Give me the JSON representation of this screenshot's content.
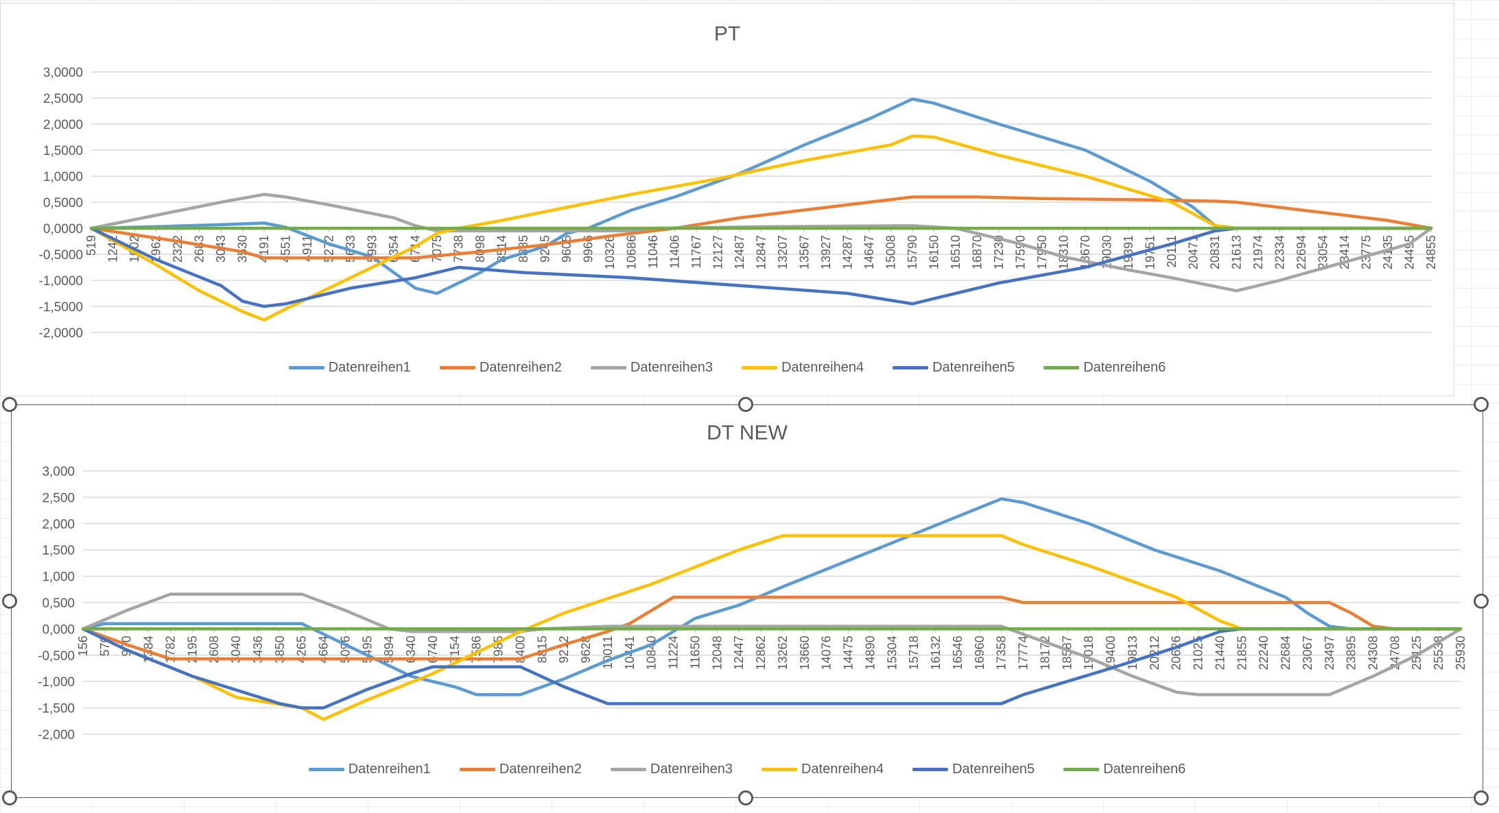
{
  "chart_data": [
    {
      "type": "line",
      "title": "PT",
      "xlabel": "",
      "ylabel": "",
      "ylim": [
        -2,
        3
      ],
      "y_ticks": [
        "3,0000",
        "2,5000",
        "2,0000",
        "1,5000",
        "1,0000",
        "0,5000",
        "0,0000",
        "-0,5000",
        "-1,0000",
        "-1,5000",
        "-2,0000"
      ],
      "y_tick_values": [
        3,
        2.5,
        2,
        1.5,
        1,
        0.5,
        0,
        -0.5,
        -1,
        -1.5,
        -2
      ],
      "categories": [
        "519",
        "1242",
        "1602",
        "1962",
        "2322",
        "2683",
        "3043",
        "3530",
        "4191",
        "4551",
        "4911",
        "5272",
        "5633",
        "5993",
        "6354",
        "6714",
        "7075",
        "7738",
        "8098",
        "8514",
        "8885",
        "9245",
        "9605",
        "9966",
        "10326",
        "10686",
        "11046",
        "11406",
        "11767",
        "12127",
        "12487",
        "12847",
        "13207",
        "13567",
        "13927",
        "14287",
        "14647",
        "15008",
        "15790",
        "16150",
        "16510",
        "16870",
        "17230",
        "17590",
        "17950",
        "18310",
        "18670",
        "19030",
        "19391",
        "19751",
        "20111",
        "20471",
        "20831",
        "21613",
        "21974",
        "22334",
        "22694",
        "23054",
        "23414",
        "23775",
        "24135",
        "24495",
        "24855"
      ],
      "grid": true,
      "legend_position": "bottom",
      "series": [
        {
          "name": "Datenreihen1",
          "color": "#5b9bd5",
          "points": [
            [
              0,
              0
            ],
            [
              3,
              0.03
            ],
            [
              6,
              0.07
            ],
            [
              8,
              0.1
            ],
            [
              9,
              0.02
            ],
            [
              11,
              -0.3
            ],
            [
              13,
              -0.55
            ],
            [
              14,
              -0.85
            ],
            [
              15,
              -1.15
            ],
            [
              16,
              -1.25
            ],
            [
              17,
              -1.05
            ],
            [
              18,
              -0.85
            ],
            [
              19,
              -0.6
            ],
            [
              21,
              -0.35
            ],
            [
              22,
              -0.1
            ],
            [
              23,
              0
            ],
            [
              25,
              0.35
            ],
            [
              27,
              0.6
            ],
            [
              30,
              1.05
            ],
            [
              33,
              1.6
            ],
            [
              36,
              2.1
            ],
            [
              38,
              2.48
            ],
            [
              39,
              2.4
            ],
            [
              42,
              2.0
            ],
            [
              46,
              1.5
            ],
            [
              49,
              0.9
            ],
            [
              51,
              0.4
            ],
            [
              52,
              0.05
            ],
            [
              53,
              0
            ],
            [
              62,
              0
            ]
          ]
        },
        {
          "name": "Datenreihen2",
          "color": "#ed7d31",
          "points": [
            [
              0,
              0
            ],
            [
              4,
              -0.25
            ],
            [
              7,
              -0.45
            ],
            [
              8,
              -0.57
            ],
            [
              15,
              -0.57
            ],
            [
              18,
              -0.45
            ],
            [
              21,
              -0.32
            ],
            [
              24,
              -0.15
            ],
            [
              26,
              -0.05
            ],
            [
              27,
              0
            ],
            [
              30,
              0.2
            ],
            [
              33,
              0.35
            ],
            [
              36,
              0.5
            ],
            [
              38,
              0.6
            ],
            [
              41,
              0.6
            ],
            [
              44,
              0.57
            ],
            [
              48,
              0.55
            ],
            [
              52,
              0.52
            ],
            [
              53,
              0.5
            ],
            [
              54,
              0.45
            ],
            [
              57,
              0.3
            ],
            [
              60,
              0.15
            ],
            [
              62,
              0
            ]
          ]
        },
        {
          "name": "Datenreihen3",
          "color": "#a5a5a5",
          "points": [
            [
              0,
              0
            ],
            [
              3,
              0.25
            ],
            [
              6,
              0.5
            ],
            [
              8,
              0.65
            ],
            [
              9,
              0.6
            ],
            [
              11,
              0.45
            ],
            [
              14,
              0.2
            ],
            [
              15,
              0.05
            ],
            [
              16,
              -0.05
            ],
            [
              25,
              -0.05
            ],
            [
              26,
              0
            ],
            [
              31,
              0.03
            ],
            [
              38,
              0.05
            ],
            [
              40,
              0
            ],
            [
              43,
              -0.3
            ],
            [
              45,
              -0.55
            ],
            [
              48,
              -0.8
            ],
            [
              50,
              -0.95
            ],
            [
              53,
              -1.2
            ],
            [
              55,
              -1.0
            ],
            [
              58,
              -0.65
            ],
            [
              61,
              -0.3
            ],
            [
              62,
              0
            ]
          ]
        },
        {
          "name": "Datenreihen4",
          "color": "#ffc000",
          "points": [
            [
              0,
              0
            ],
            [
              3,
              -0.7
            ],
            [
              5,
              -1.2
            ],
            [
              7,
              -1.6
            ],
            [
              8,
              -1.76
            ],
            [
              9,
              -1.55
            ],
            [
              12,
              -0.95
            ],
            [
              15,
              -0.35
            ],
            [
              16,
              -0.1
            ],
            [
              17,
              0
            ],
            [
              19,
              0.15
            ],
            [
              22,
              0.4
            ],
            [
              25,
              0.65
            ],
            [
              29,
              0.95
            ],
            [
              33,
              1.3
            ],
            [
              37,
              1.6
            ],
            [
              38,
              1.77
            ],
            [
              39,
              1.75
            ],
            [
              42,
              1.4
            ],
            [
              46,
              1.0
            ],
            [
              50,
              0.5
            ],
            [
              52,
              0.05
            ],
            [
              53,
              0
            ],
            [
              62,
              0
            ]
          ]
        },
        {
          "name": "Datenreihen5",
          "color": "#4472c4",
          "points": [
            [
              0,
              0
            ],
            [
              3,
              -0.6
            ],
            [
              6,
              -1.1
            ],
            [
              7,
              -1.4
            ],
            [
              8,
              -1.5
            ],
            [
              9,
              -1.45
            ],
            [
              12,
              -1.15
            ],
            [
              15,
              -0.95
            ],
            [
              17,
              -0.75
            ],
            [
              20,
              -0.85
            ],
            [
              25,
              -0.95
            ],
            [
              30,
              -1.1
            ],
            [
              35,
              -1.25
            ],
            [
              38,
              -1.45
            ],
            [
              39,
              -1.35
            ],
            [
              42,
              -1.05
            ],
            [
              46,
              -0.75
            ],
            [
              50,
              -0.3
            ],
            [
              52,
              -0.05
            ],
            [
              53,
              0
            ],
            [
              62,
              0
            ]
          ]
        },
        {
          "name": "Datenreihen6",
          "color": "#70ad47",
          "points": [
            [
              0,
              0
            ],
            [
              62,
              0
            ]
          ]
        }
      ]
    },
    {
      "type": "line",
      "title": "DT  NEW",
      "xlabel": "",
      "ylabel": "",
      "ylim": [
        -2,
        3
      ],
      "y_ticks": [
        "3,000",
        "2,500",
        "2,000",
        "1,500",
        "1,000",
        "0,500",
        "0,000",
        "-0,500",
        "-1,000",
        "-1,500",
        "-2,000"
      ],
      "y_tick_values": [
        3,
        2.5,
        2,
        1.5,
        1,
        0.5,
        0,
        -0.5,
        -1,
        -1.5,
        -2
      ],
      "categories": [
        "156",
        "570",
        "970",
        "1384",
        "1782",
        "2195",
        "2608",
        "3040",
        "3436",
        "3850",
        "4265",
        "4664",
        "5096",
        "5495",
        "5894",
        "6340",
        "6740",
        "7154",
        "7586",
        "7985",
        "8400",
        "8815",
        "9212",
        "9628",
        "10011",
        "10441",
        "10840",
        "11224",
        "11650",
        "12048",
        "12447",
        "12862",
        "13262",
        "13660",
        "14076",
        "14475",
        "14890",
        "15304",
        "15718",
        "16132",
        "16546",
        "16960",
        "17358",
        "17774",
        "18172",
        "18587",
        "19018",
        "19400",
        "19813",
        "20212",
        "20626",
        "21025",
        "21440",
        "21855",
        "22240",
        "22684",
        "23067",
        "23497",
        "23895",
        "24308",
        "24708",
        "25125",
        "25538",
        "25930"
      ],
      "grid": true,
      "legend_position": "bottom",
      "series": [
        {
          "name": "Datenreihen1",
          "color": "#5b9bd5",
          "points": [
            [
              0,
              0
            ],
            [
              1,
              0.1
            ],
            [
              10,
              0.1
            ],
            [
              11,
              -0.1
            ],
            [
              13,
              -0.5
            ],
            [
              15,
              -0.9
            ],
            [
              17,
              -1.1
            ],
            [
              18,
              -1.25
            ],
            [
              20,
              -1.25
            ],
            [
              22,
              -0.95
            ],
            [
              24,
              -0.6
            ],
            [
              26,
              -0.3
            ],
            [
              27,
              -0.05
            ],
            [
              28,
              0.2
            ],
            [
              30,
              0.45
            ],
            [
              32,
              0.8
            ],
            [
              35,
              1.3
            ],
            [
              38,
              1.8
            ],
            [
              42,
              2.47
            ],
            [
              43,
              2.4
            ],
            [
              46,
              2.0
            ],
            [
              49,
              1.5
            ],
            [
              52,
              1.1
            ],
            [
              55,
              0.6
            ],
            [
              56,
              0.3
            ],
            [
              57,
              0.05
            ],
            [
              58,
              0
            ],
            [
              63,
              0
            ]
          ]
        },
        {
          "name": "Datenreihen2",
          "color": "#ed7d31",
          "points": [
            [
              0,
              0
            ],
            [
              2,
              -0.3
            ],
            [
              4,
              -0.57
            ],
            [
              15,
              -0.57
            ],
            [
              17,
              -0.57
            ],
            [
              20,
              -0.57
            ],
            [
              22,
              -0.3
            ],
            [
              24,
              -0.05
            ],
            [
              25,
              0.1
            ],
            [
              27,
              0.6
            ],
            [
              42,
              0.6
            ],
            [
              43,
              0.5
            ],
            [
              56,
              0.5
            ],
            [
              57,
              0.5
            ],
            [
              58,
              0.3
            ],
            [
              59,
              0.05
            ],
            [
              60,
              0
            ],
            [
              63,
              0
            ]
          ]
        },
        {
          "name": "Datenreihen3",
          "color": "#a5a5a5",
          "points": [
            [
              0,
              0
            ],
            [
              2,
              0.35
            ],
            [
              4,
              0.66
            ],
            [
              10,
              0.66
            ],
            [
              12,
              0.35
            ],
            [
              14,
              0
            ],
            [
              15,
              -0.05
            ],
            [
              20,
              -0.05
            ],
            [
              21,
              0
            ],
            [
              24,
              0.05
            ],
            [
              42,
              0.05
            ],
            [
              43,
              -0.1
            ],
            [
              46,
              -0.55
            ],
            [
              48,
              -0.9
            ],
            [
              50,
              -1.2
            ],
            [
              51,
              -1.25
            ],
            [
              57,
              -1.25
            ],
            [
              59,
              -0.9
            ],
            [
              61,
              -0.5
            ],
            [
              63,
              0
            ]
          ]
        },
        {
          "name": "Datenreihen4",
          "color": "#ffc000",
          "points": [
            [
              0,
              0
            ],
            [
              2,
              -0.4
            ],
            [
              5,
              -0.9
            ],
            [
              7,
              -1.3
            ],
            [
              10,
              -1.5
            ],
            [
              11,
              -1.72
            ],
            [
              13,
              -1.35
            ],
            [
              16,
              -0.85
            ],
            [
              18,
              -0.45
            ],
            [
              20,
              -0.05
            ],
            [
              22,
              0.3
            ],
            [
              26,
              0.85
            ],
            [
              30,
              1.5
            ],
            [
              32,
              1.77
            ],
            [
              42,
              1.77
            ],
            [
              43,
              1.6
            ],
            [
              46,
              1.2
            ],
            [
              50,
              0.6
            ],
            [
              52,
              0.15
            ],
            [
              53,
              0
            ],
            [
              63,
              0
            ]
          ]
        },
        {
          "name": "Datenreihen5",
          "color": "#4472c4",
          "points": [
            [
              0,
              0
            ],
            [
              2,
              -0.4
            ],
            [
              5,
              -0.9
            ],
            [
              9,
              -1.42
            ],
            [
              10,
              -1.5
            ],
            [
              11,
              -1.5
            ],
            [
              13,
              -1.15
            ],
            [
              15,
              -0.85
            ],
            [
              16,
              -0.72
            ],
            [
              20,
              -0.72
            ],
            [
              22,
              -1.1
            ],
            [
              24,
              -1.42
            ],
            [
              42,
              -1.42
            ],
            [
              43,
              -1.25
            ],
            [
              47,
              -0.75
            ],
            [
              50,
              -0.35
            ],
            [
              52,
              -0.05
            ],
            [
              53,
              0
            ],
            [
              63,
              0
            ]
          ]
        },
        {
          "name": "Datenreihen6",
          "color": "#70ad47",
          "points": [
            [
              0,
              0
            ],
            [
              63,
              0
            ]
          ]
        }
      ]
    }
  ]
}
